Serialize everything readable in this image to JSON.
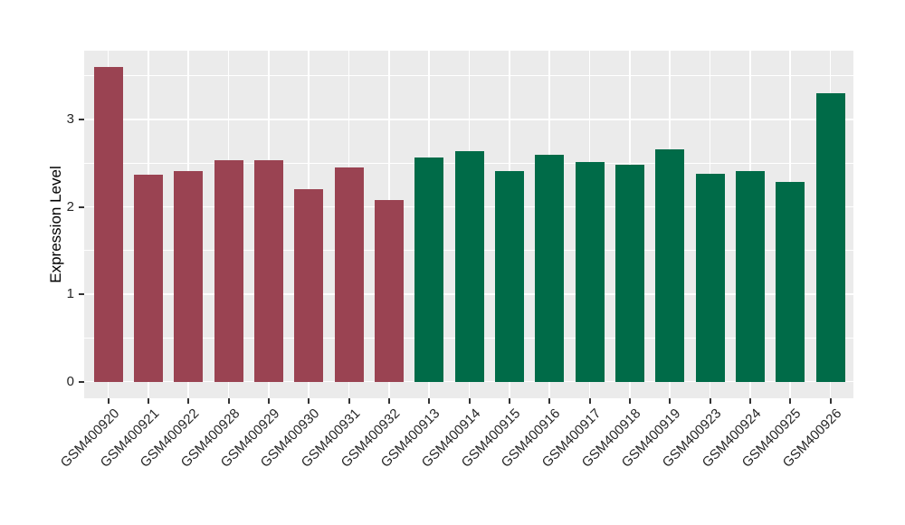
{
  "figure": {
    "background": "#FFFFFF",
    "panel_background": "#EBEBEB",
    "grid_color": "#FFFFFF",
    "tick_color": "#333333",
    "text_color": "#262626"
  },
  "chart_data": {
    "type": "bar",
    "title": "",
    "xlabel": "",
    "ylabel": "Expression Level",
    "categories": [
      "GSM400920",
      "GSM400921",
      "GSM400922",
      "GSM400928",
      "GSM400929",
      "GSM400930",
      "GSM400931",
      "GSM400932",
      "GSM400913",
      "GSM400914",
      "GSM400915",
      "GSM400916",
      "GSM400917",
      "GSM400918",
      "GSM400919",
      "GSM400923",
      "GSM400924",
      "GSM400925",
      "GSM400926"
    ],
    "values": [
      3.6,
      2.37,
      2.41,
      2.54,
      2.54,
      2.2,
      2.45,
      2.08,
      2.57,
      2.64,
      2.41,
      2.6,
      2.52,
      2.48,
      2.66,
      2.38,
      2.41,
      2.29,
      3.3
    ],
    "bar_colors": [
      "#9A4352",
      "#9A4352",
      "#9A4352",
      "#9A4352",
      "#9A4352",
      "#9A4352",
      "#9A4352",
      "#9A4352",
      "#006B48",
      "#006B48",
      "#006B48",
      "#006B48",
      "#006B48",
      "#006B48",
      "#006B48",
      "#006B48",
      "#006B48",
      "#006B48",
      "#006B48"
    ],
    "yticks": [
      0,
      1,
      2,
      3
    ],
    "yticks_minor": [
      0.5,
      1.5,
      2.5,
      3.5
    ],
    "ylim": [
      -0.19,
      3.79
    ],
    "grid": true,
    "legend_position": "none"
  }
}
